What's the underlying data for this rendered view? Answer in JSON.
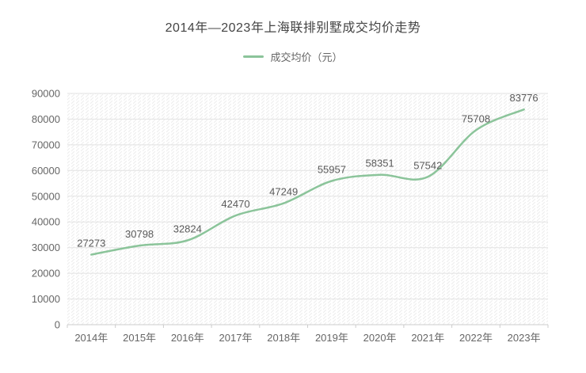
{
  "title": "2014年—2023年上海联排别墅成交均价走势",
  "legend": {
    "label": "成交均价（元）"
  },
  "chart_data": {
    "type": "line",
    "smooth": true,
    "title": "2014年—2023年上海联排别墅成交均价走势",
    "categories": [
      "2014年",
      "2015年",
      "2016年",
      "2017年",
      "2018年",
      "2019年",
      "2020年",
      "2021年",
      "2022年",
      "2023年"
    ],
    "series": [
      {
        "name": "成交均价（元）",
        "values": [
          27273,
          30798,
          32824,
          42470,
          47249,
          55957,
          58351,
          57542,
          75708,
          83776
        ]
      }
    ],
    "xlabel": "",
    "ylabel": "",
    "ylim": [
      0,
      90000
    ],
    "yticks": [
      0,
      10000,
      20000,
      30000,
      40000,
      50000,
      60000,
      70000,
      80000,
      90000
    ],
    "grid": true,
    "legend_position": "top",
    "show_data_labels": true
  },
  "style": {
    "line_color": "#8BC49A",
    "title_color": "#444444",
    "axis_text_color": "#666666",
    "data_label_color": "#5a5a5a",
    "grid_color": "#e2e2e2",
    "axis_line_color": "#cccccc",
    "hatch_color": "#ededed",
    "background": "#ffffff"
  }
}
